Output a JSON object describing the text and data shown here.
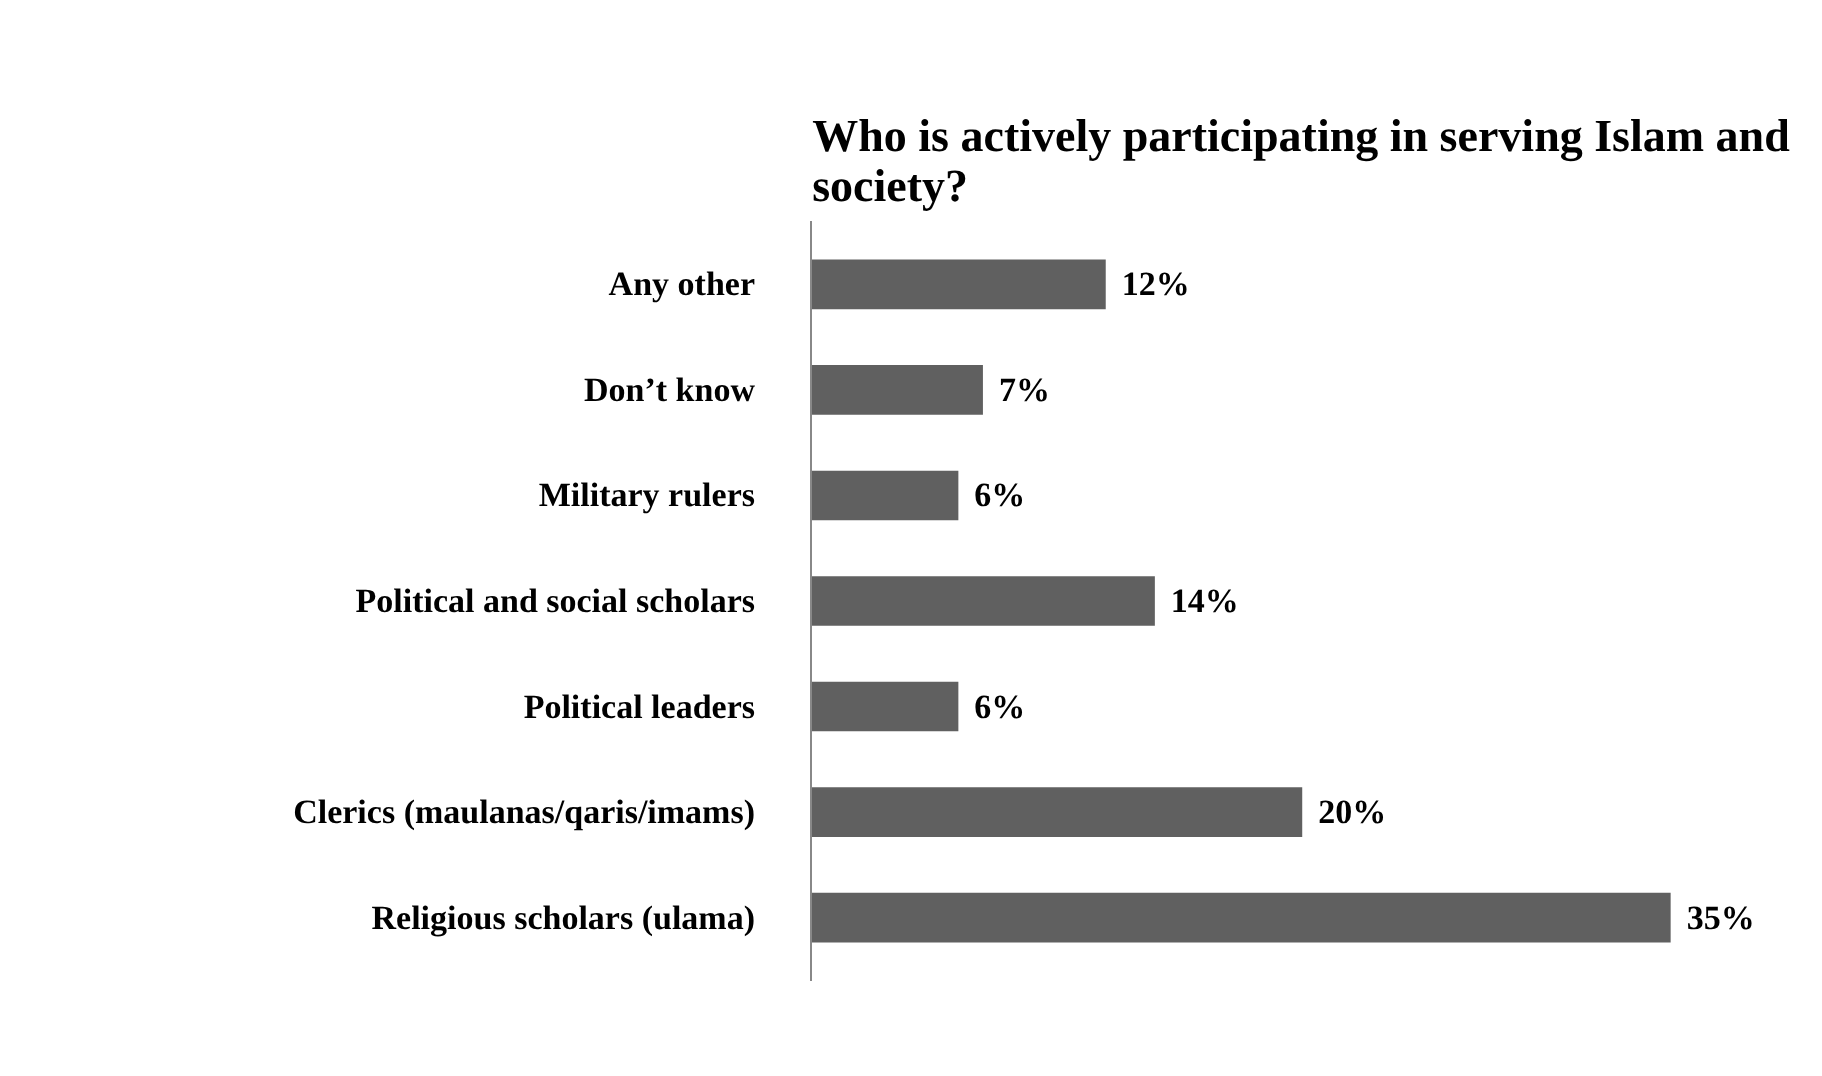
{
  "chart_data": {
    "type": "bar",
    "orientation": "horizontal",
    "title": "Who is actively participating in serving Islam and society?",
    "categories": [
      "Any other",
      "Don’t know",
      "Military rulers",
      "Political and social scholars",
      "Political leaders",
      "Clerics (maulanas/qaris/imams)",
      "Religious scholars (ulama)"
    ],
    "values": [
      12,
      7,
      6,
      14,
      6,
      20,
      35
    ],
    "value_labels": [
      "12%",
      "7%",
      "6%",
      "14%",
      "6%",
      "20%",
      "35%"
    ],
    "color": "#606060",
    "grid": false
  }
}
